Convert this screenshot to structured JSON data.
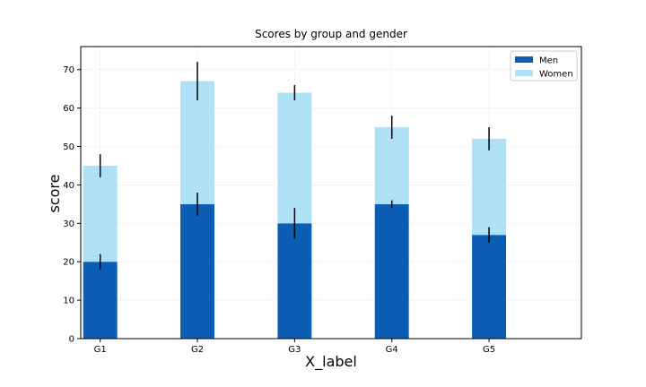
{
  "chart_data": {
    "type": "bar",
    "stacked": true,
    "title": "Scores by group and gender",
    "xlabel": "X_label",
    "ylabel": "score",
    "categories": [
      "G1",
      "G2",
      "G3",
      "G4",
      "G5"
    ],
    "ylim": [
      0,
      76
    ],
    "yticks": [
      0,
      10,
      20,
      30,
      40,
      50,
      60,
      70
    ],
    "grid": true,
    "legend_position": "top-right",
    "series": [
      {
        "name": "Men",
        "values": [
          20,
          35,
          30,
          35,
          27
        ],
        "errors": [
          2,
          3,
          4,
          1,
          2
        ],
        "color": "#0b5eb4"
      },
      {
        "name": "Women",
        "values": [
          25,
          32,
          34,
          20,
          25
        ],
        "errors": [
          3,
          5,
          2,
          3,
          3
        ],
        "color": "#aee0f6"
      }
    ]
  }
}
